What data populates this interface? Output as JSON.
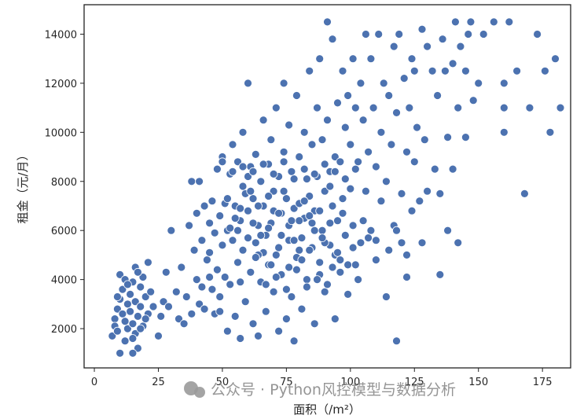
{
  "chart_data": {
    "type": "scatter",
    "title": "",
    "xlabel": "面积（/m²）",
    "ylabel": "租金（元/月）",
    "xlim": [
      -4,
      186
    ],
    "ylim": [
      400,
      15200
    ],
    "xticks": [
      0,
      25,
      50,
      75,
      100,
      125,
      150,
      175
    ],
    "yticks": [
      2000,
      4000,
      6000,
      8000,
      10000,
      12000,
      14000
    ],
    "grid": false,
    "marker_color": "#4c72b0",
    "points": [
      [
        7,
        1700
      ],
      [
        8,
        2400
      ],
      [
        8,
        2100
      ],
      [
        9,
        2800
      ],
      [
        9,
        1900
      ],
      [
        10,
        1000
      ],
      [
        10,
        3200
      ],
      [
        10,
        4200
      ],
      [
        11,
        2600
      ],
      [
        11,
        3600
      ],
      [
        12,
        2300
      ],
      [
        12,
        1500
      ],
      [
        13,
        3000
      ],
      [
        13,
        2000
      ],
      [
        14,
        3400
      ],
      [
        14,
        2700
      ],
      [
        15,
        3900
      ],
      [
        15,
        2200
      ],
      [
        16,
        4500
      ],
      [
        16,
        1800
      ],
      [
        16,
        3100
      ],
      [
        17,
        2500
      ],
      [
        17,
        1200
      ],
      [
        18,
        3700
      ],
      [
        18,
        2900
      ],
      [
        19,
        4100
      ],
      [
        19,
        2100
      ],
      [
        20,
        3300
      ],
      [
        21,
        2600
      ],
      [
        21,
        4700
      ],
      [
        22,
        3500
      ],
      [
        23,
        2900
      ],
      [
        15,
        1000
      ],
      [
        15,
        1600
      ],
      [
        12,
        4000
      ],
      [
        9,
        3300
      ],
      [
        18,
        2000
      ],
      [
        20,
        2400
      ],
      [
        13,
        3800
      ],
      [
        17,
        4300
      ],
      [
        25,
        1700
      ],
      [
        26,
        2500
      ],
      [
        27,
        3100
      ],
      [
        28,
        4300
      ],
      [
        29,
        2900
      ],
      [
        30,
        6000
      ],
      [
        32,
        3500
      ],
      [
        33,
        2400
      ],
      [
        34,
        4500
      ],
      [
        35,
        2200
      ],
      [
        36,
        3300
      ],
      [
        37,
        6200
      ],
      [
        38,
        8000
      ],
      [
        38,
        2600
      ],
      [
        39,
        5200
      ],
      [
        40,
        6700
      ],
      [
        40,
        4000
      ],
      [
        41,
        8000
      ],
      [
        41,
        3000
      ],
      [
        42,
        5600
      ],
      [
        43,
        7000
      ],
      [
        43,
        2800
      ],
      [
        44,
        4800
      ],
      [
        45,
        6300
      ],
      [
        45,
        5100
      ],
      [
        46,
        7200
      ],
      [
        46,
        3600
      ],
      [
        47,
        5900
      ],
      [
        47,
        2600
      ],
      [
        48,
        8500
      ],
      [
        48,
        4400
      ],
      [
        49,
        6600
      ],
      [
        49,
        3300
      ],
      [
        50,
        5400
      ],
      [
        50,
        9000
      ],
      [
        51,
        7100
      ],
      [
        51,
        4100
      ],
      [
        52,
        6000
      ],
      [
        52,
        1900
      ],
      [
        53,
        8300
      ],
      [
        53,
        3800
      ],
      [
        54,
        9500
      ],
      [
        54,
        5600
      ],
      [
        55,
        7000
      ],
      [
        55,
        2500
      ],
      [
        56,
        8800
      ],
      [
        56,
        4700
      ],
      [
        57,
        6400
      ],
      [
        57,
        1600
      ],
      [
        58,
        10000
      ],
      [
        58,
        5200
      ],
      [
        59,
        7500
      ],
      [
        59,
        3100
      ],
      [
        60,
        12000
      ],
      [
        60,
        6800
      ],
      [
        61,
        8600
      ],
      [
        61,
        4300
      ],
      [
        62,
        7300
      ],
      [
        62,
        2200
      ],
      [
        63,
        9100
      ],
      [
        63,
        5500
      ],
      [
        64,
        6200
      ],
      [
        64,
        1700
      ],
      [
        65,
        8000
      ],
      [
        65,
        3900
      ],
      [
        66,
        10500
      ],
      [
        66,
        7000
      ],
      [
        67,
        5800
      ],
      [
        67,
        2700
      ],
      [
        68,
        8700
      ],
      [
        68,
        4600
      ],
      [
        69,
        9700
      ],
      [
        69,
        6300
      ],
      [
        70,
        7600
      ],
      [
        70,
        3500
      ],
      [
        71,
        11000
      ],
      [
        71,
        5000
      ],
      [
        72,
        8200
      ],
      [
        72,
        1900
      ],
      [
        73,
        6700
      ],
      [
        73,
        4200
      ],
      [
        74,
        12000
      ],
      [
        74,
        9200
      ],
      [
        75,
        7300
      ],
      [
        75,
        2400
      ],
      [
        76,
        10300
      ],
      [
        76,
        5600
      ],
      [
        77,
        8400
      ],
      [
        77,
        3300
      ],
      [
        78,
        6900
      ],
      [
        78,
        1500
      ],
      [
        79,
        11500
      ],
      [
        79,
        4900
      ],
      [
        80,
        9000
      ],
      [
        80,
        7100
      ],
      [
        81,
        5700
      ],
      [
        81,
        2800
      ],
      [
        82,
        10000
      ],
      [
        82,
        6500
      ],
      [
        83,
        8100
      ],
      [
        83,
        4000
      ],
      [
        84,
        12500
      ],
      [
        84,
        7400
      ],
      [
        85,
        9500
      ],
      [
        85,
        5300
      ],
      [
        86,
        6800
      ],
      [
        86,
        2200
      ],
      [
        87,
        11000
      ],
      [
        87,
        8200
      ],
      [
        88,
        4700
      ],
      [
        88,
        13000
      ],
      [
        89,
        9700
      ],
      [
        89,
        6000
      ],
      [
        90,
        7600
      ],
      [
        90,
        3500
      ],
      [
        91,
        14500
      ],
      [
        91,
        10500
      ],
      [
        92,
        8400
      ],
      [
        92,
        5400
      ],
      [
        93,
        13800
      ],
      [
        93,
        7000
      ],
      [
        94,
        9000
      ],
      [
        94,
        2400
      ],
      [
        95,
        11200
      ],
      [
        95,
        6400
      ],
      [
        96,
        8800
      ],
      [
        96,
        4300
      ],
      [
        97,
        12500
      ],
      [
        97,
        7300
      ],
      [
        98,
        10200
      ],
      [
        98,
        5800
      ],
      [
        99,
        11500
      ],
      [
        99,
        3400
      ],
      [
        100,
        9500
      ],
      [
        100,
        7700
      ],
      [
        101,
        13000
      ],
      [
        101,
        6200
      ],
      [
        102,
        11000
      ],
      [
        102,
        4600
      ],
      [
        103,
        8800
      ],
      [
        104,
        12000
      ],
      [
        104,
        5500
      ],
      [
        105,
        10500
      ],
      [
        106,
        14000
      ],
      [
        106,
        7600
      ],
      [
        107,
        9200
      ],
      [
        108,
        13000
      ],
      [
        108,
        6000
      ],
      [
        109,
        11000
      ],
      [
        110,
        8600
      ],
      [
        110,
        4800
      ],
      [
        111,
        14000
      ],
      [
        112,
        10000
      ],
      [
        112,
        7200
      ],
      [
        113,
        12000
      ],
      [
        114,
        8000
      ],
      [
        114,
        3300
      ],
      [
        115,
        11500
      ],
      [
        116,
        9500
      ],
      [
        117,
        13500
      ],
      [
        117,
        6200
      ],
      [
        118,
        10800
      ],
      [
        118,
        1500
      ],
      [
        119,
        14000
      ],
      [
        120,
        7500
      ],
      [
        120,
        5500
      ],
      [
        121,
        12200
      ],
      [
        122,
        9200
      ],
      [
        122,
        4100
      ],
      [
        123,
        11000
      ],
      [
        124,
        13000
      ],
      [
        124,
        6800
      ],
      [
        125,
        8800
      ],
      [
        125,
        12500
      ],
      [
        126,
        10200
      ],
      [
        127,
        7200
      ],
      [
        128,
        14200
      ],
      [
        128,
        5500
      ],
      [
        129,
        9700
      ],
      [
        130,
        13500
      ],
      [
        130,
        7600
      ],
      [
        132,
        12500
      ],
      [
        133,
        8500
      ],
      [
        134,
        11500
      ],
      [
        135,
        7500
      ],
      [
        135,
        4200
      ],
      [
        136,
        13800
      ],
      [
        137,
        12500
      ],
      [
        138,
        9800
      ],
      [
        138,
        6000
      ],
      [
        140,
        8500
      ],
      [
        140,
        12800
      ],
      [
        141,
        14500
      ],
      [
        142,
        11000
      ],
      [
        142,
        5500
      ],
      [
        143,
        13500
      ],
      [
        145,
        12500
      ],
      [
        145,
        9800
      ],
      [
        146,
        14000
      ],
      [
        147,
        14500
      ],
      [
        148,
        11300
      ],
      [
        150,
        12000
      ],
      [
        152,
        14000
      ],
      [
        156,
        14500
      ],
      [
        160,
        12000
      ],
      [
        160,
        10000
      ],
      [
        160,
        11000
      ],
      [
        162,
        14500
      ],
      [
        165,
        12500
      ],
      [
        168,
        7500
      ],
      [
        170,
        11000
      ],
      [
        173,
        14000
      ],
      [
        176,
        12500
      ],
      [
        178,
        10000
      ],
      [
        180,
        13000
      ],
      [
        182,
        11000
      ],
      [
        55,
        6500
      ],
      [
        58,
        7800
      ],
      [
        60,
        5700
      ],
      [
        62,
        6300
      ],
      [
        64,
        7000
      ],
      [
        66,
        5100
      ],
      [
        68,
        6100
      ],
      [
        70,
        6800
      ],
      [
        72,
        5300
      ],
      [
        74,
        7600
      ],
      [
        76,
        6200
      ],
      [
        78,
        5600
      ],
      [
        80,
        6400
      ],
      [
        82,
        7200
      ],
      [
        84,
        5200
      ],
      [
        86,
        6000
      ],
      [
        88,
        6800
      ],
      [
        90,
        5500
      ],
      [
        92,
        6300
      ],
      [
        94,
        5000
      ],
      [
        96,
        4800
      ],
      [
        52,
        7300
      ],
      [
        56,
        6000
      ],
      [
        60,
        8200
      ],
      [
        64,
        5000
      ],
      [
        68,
        7400
      ],
      [
        72,
        6700
      ],
      [
        76,
        4500
      ],
      [
        80,
        5200
      ],
      [
        84,
        6600
      ],
      [
        88,
        4200
      ],
      [
        92,
        7800
      ],
      [
        57,
        6900
      ],
      [
        61,
        7600
      ],
      [
        65,
        5800
      ],
      [
        69,
        4600
      ],
      [
        73,
        5800
      ],
      [
        77,
        6400
      ],
      [
        81,
        4800
      ],
      [
        85,
        6300
      ],
      [
        89,
        5700
      ],
      [
        93,
        4500
      ],
      [
        97,
        6700
      ],
      [
        101,
        5300
      ],
      [
        105,
        6400
      ],
      [
        110,
        5600
      ],
      [
        115,
        5200
      ],
      [
        118,
        6000
      ],
      [
        122,
        5000
      ],
      [
        45,
        4100
      ],
      [
        42,
        3700
      ],
      [
        49,
        2700
      ],
      [
        53,
        6100
      ],
      [
        57,
        3900
      ],
      [
        63,
        4900
      ],
      [
        67,
        3800
      ],
      [
        71,
        4100
      ],
      [
        75,
        3600
      ],
      [
        79,
        4400
      ],
      [
        83,
        3700
      ],
      [
        87,
        4000
      ],
      [
        91,
        3800
      ],
      [
        95,
        5100
      ],
      [
        99,
        4600
      ],
      [
        103,
        4000
      ],
      [
        107,
        5700
      ],
      [
        50,
        8800
      ],
      [
        54,
        8400
      ],
      [
        58,
        8600
      ],
      [
        62,
        8400
      ],
      [
        66,
        8700
      ],
      [
        70,
        8300
      ],
      [
        74,
        8800
      ],
      [
        78,
        8100
      ],
      [
        82,
        8500
      ],
      [
        86,
        8300
      ],
      [
        90,
        8700
      ],
      [
        94,
        8400
      ],
      [
        98,
        8100
      ],
      [
        102,
        8500
      ]
    ]
  },
  "watermark": "公众号 · Python风控模型与数据分析"
}
